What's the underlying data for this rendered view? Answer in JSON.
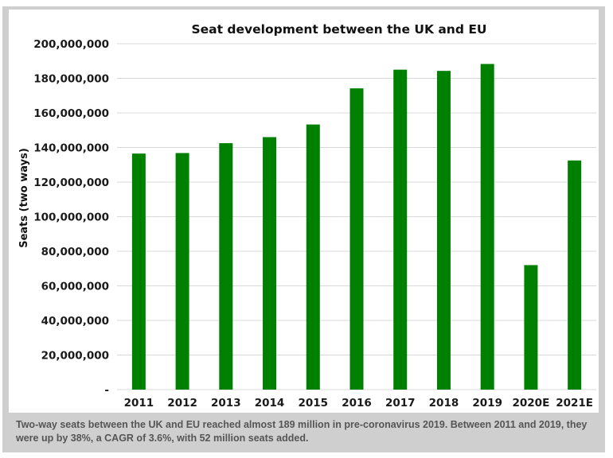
{
  "chart_data": {
    "type": "bar",
    "title": "Seat development between the UK and EU",
    "xlabel": "",
    "ylabel": "Seats (two ways)",
    "categories": [
      "2011",
      "2012",
      "2013",
      "2014",
      "2015",
      "2016",
      "2017",
      "2018",
      "2019",
      "2020E",
      "2021E"
    ],
    "values": [
      136500000,
      136800000,
      142500000,
      146000000,
      153300000,
      174200000,
      185000000,
      184300000,
      188300000,
      72000000,
      132500000
    ],
    "ylim": [
      0,
      200000000
    ],
    "yticks": [
      0,
      20000000,
      40000000,
      60000000,
      80000000,
      100000000,
      120000000,
      140000000,
      160000000,
      180000000,
      200000000
    ],
    "ytick_labels": [
      "-",
      "20,000,000",
      "40,000,000",
      "60,000,000",
      "80,000,000",
      "100,000,000",
      "120,000,000",
      "140,000,000",
      "160,000,000",
      "180,000,000",
      "200,000,000"
    ],
    "bar_color": "#008000",
    "grid": true,
    "legend": "none"
  },
  "caption": "Two-way seats between the UK and EU reached almost 189 million in pre-coronavirus 2019. Between 2011 and 2019, they were up by 38%, a CAGR of 3.6%, with 52 million seats added.",
  "colors": {
    "frame": "#cfcfcf",
    "gridline": "#d9d9d9",
    "caption_text": "#555555"
  }
}
